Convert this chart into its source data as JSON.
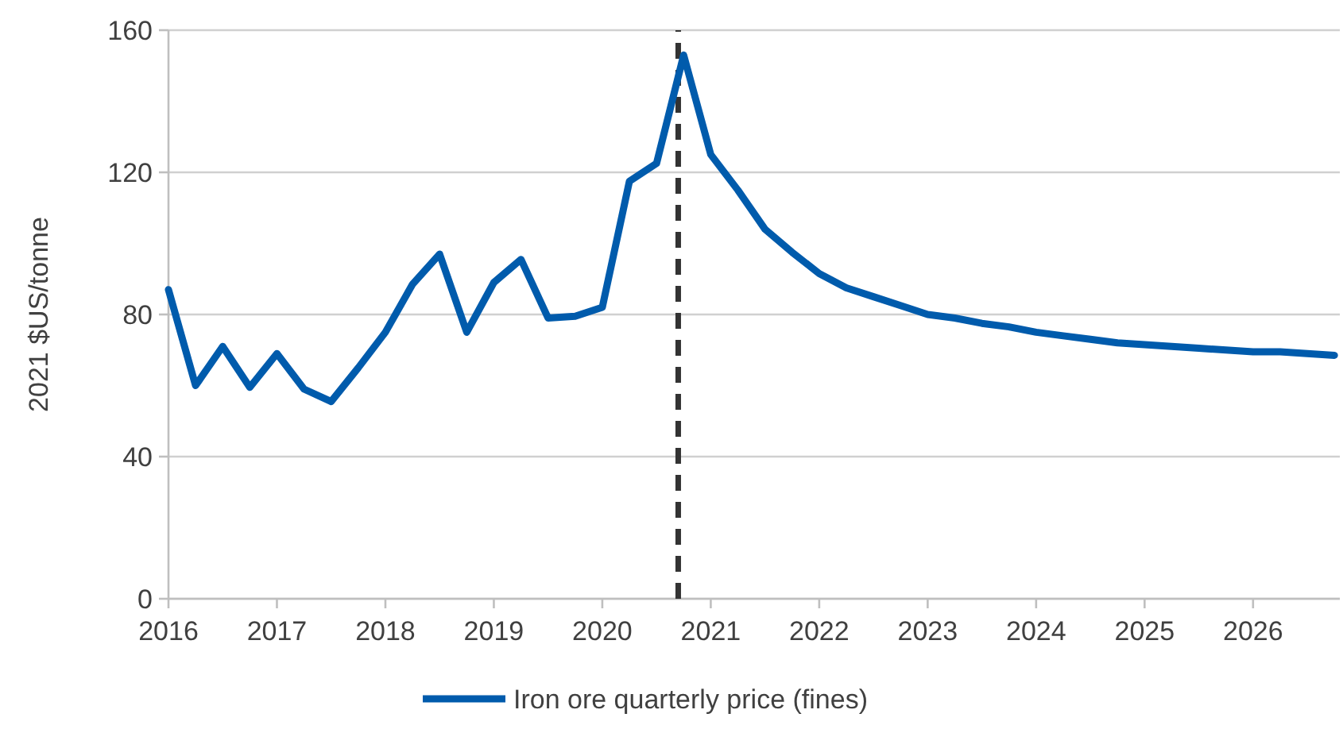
{
  "chart_data": {
    "type": "line",
    "ylabel": "2021 $US/tonne",
    "xlim": [
      2016,
      2026.8
    ],
    "xticks": [
      2016,
      2017,
      2018,
      2019,
      2020,
      2021,
      2022,
      2023,
      2024,
      2025,
      2026
    ],
    "ylim": [
      0,
      160
    ],
    "yticks": [
      0,
      40,
      80,
      120,
      160
    ],
    "grid": "y",
    "legend": "bottom",
    "marker": "none",
    "line_style": "solid",
    "x": [
      2016,
      2016.25,
      2016.5,
      2016.75,
      2017,
      2017.25,
      2017.5,
      2017.75,
      2018,
      2018.25,
      2018.5,
      2018.75,
      2019,
      2019.25,
      2019.5,
      2019.75,
      2020,
      2020.25,
      2020.5,
      2020.75,
      2021,
      2021.25,
      2021.5,
      2021.75,
      2022,
      2022.25,
      2022.5,
      2022.75,
      2023,
      2023.25,
      2023.5,
      2023.75,
      2024,
      2024.25,
      2024.5,
      2024.75,
      2025,
      2025.25,
      2025.5,
      2025.75,
      2026,
      2026.25,
      2026.5,
      2026.75
    ],
    "series": [
      {
        "name": "Iron ore quarterly price (fines)",
        "color": "#005bac",
        "values": [
          87,
          60,
          71,
          59.5,
          69,
          59,
          55.5,
          65,
          75,
          88.5,
          97,
          75,
          89,
          95.5,
          79,
          79.5,
          82,
          117.5,
          122.5,
          153,
          125,
          115,
          104,
          97.5,
          91.5,
          87.5,
          85,
          82.5,
          80,
          79,
          77.5,
          76.5,
          75,
          74,
          73,
          72,
          71.5,
          71,
          70.5,
          70,
          69.5,
          69.5,
          69,
          68.5
        ]
      }
    ],
    "ref_lines": [
      {
        "axis": "x",
        "value": 2020.7,
        "color": "#333333",
        "line_style": "dashed"
      }
    ]
  }
}
